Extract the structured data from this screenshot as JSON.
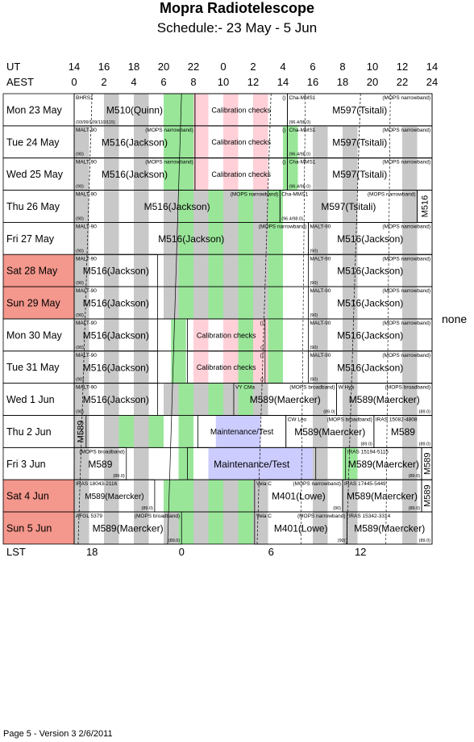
{
  "title": "Mopra Radiotelescope",
  "subtitle": "Schedule:- 23 May - 5  Jun",
  "axes": {
    "ut_label": "UT",
    "aest_label": "AEST",
    "lst_label": "LST",
    "ut_ticks": [
      "14",
      "16",
      "18",
      "20",
      "22",
      "0",
      "2",
      "4",
      "6",
      "8",
      "10",
      "12",
      "14"
    ],
    "aest_ticks": [
      "0",
      "2",
      "4",
      "6",
      "8",
      "10",
      "12",
      "14",
      "16",
      "18",
      "20",
      "22",
      "24"
    ],
    "lst_ticks": [
      {
        "label": "18",
        "aest": 1.2
      },
      {
        "label": "0",
        "aest": 7.2
      },
      {
        "label": "6",
        "aest": 13.2
      },
      {
        "label": "12",
        "aest": 19.2
      }
    ]
  },
  "colors": {
    "green": "#99e699",
    "grey": "#c8c8c8",
    "pink": "#ffd0d8",
    "blue": "#ccccff",
    "weekend": "#f4978c"
  },
  "side_note": "none",
  "footer": "Page 5 - Version 3  2/6/2011",
  "chart_data": {
    "type": "table",
    "x_axis": "AEST hour",
    "xlim": [
      0,
      24
    ],
    "days": [
      {
        "label": "Mon 23 May",
        "weekend": false,
        "green": [
          6,
          7
        ],
        "grey": [
          [
            2,
            3
          ],
          [
            4,
            5
          ]
        ],
        "pink": [
          [
            8,
            9
          ],
          [
            10,
            11
          ],
          [
            12,
            13
          ]
        ],
        "blocks": [
          {
            "start": 0,
            "end": 8.1,
            "main": "M510(Quinn)",
            "tl": "BHRS1",
            "bl": "(93/99/109/110/115)",
            "size": 12
          },
          {
            "start": 8.1,
            "end": 14.3,
            "main": "Calibration checks",
            "tr": "()",
            "size": 9
          },
          {
            "start": 14.3,
            "end": 24,
            "main": "M597(Tsitali)",
            "tl": "Cha-MMS1",
            "tr": "(MOPS narrowband)",
            "bl": "(96.4/98.0)",
            "size": 12
          }
        ]
      },
      {
        "label": "Tue  24 May",
        "weekend": false,
        "green": [
          6,
          7,
          14
        ],
        "grey": [
          [
            0,
            1
          ],
          [
            2,
            3
          ],
          [
            4,
            5
          ],
          [
            16,
            17
          ],
          [
            18,
            19
          ],
          [
            22,
            23
          ]
        ],
        "pink": [
          [
            8,
            9
          ],
          [
            10,
            11
          ],
          [
            12,
            13
          ]
        ],
        "blocks": [
          {
            "start": 0,
            "end": 8.1,
            "main": "M516(Jackson)",
            "tl": "MALT-90",
            "tr": "(MOPS narrowband)",
            "bl": "(90)",
            "size": 12
          },
          {
            "start": 8.1,
            "end": 14.3,
            "main": "Calibration checks",
            "tr": "()",
            "size": 9
          },
          {
            "start": 14.3,
            "end": 24,
            "main": "M597(Tsitali)",
            "tl": "Cha-MMS1",
            "tr": "(MOPS narrowband)",
            "bl": "(96.4/98.0)",
            "size": 12
          }
        ]
      },
      {
        "label": "Wed 25 May",
        "weekend": false,
        "green": [
          6,
          7,
          14
        ],
        "grey": [
          [
            0,
            1
          ],
          [
            2,
            3
          ],
          [
            4,
            5
          ],
          [
            16,
            17
          ],
          [
            18,
            19
          ],
          [
            22,
            23
          ]
        ],
        "pink": [
          [
            8,
            9
          ],
          [
            10,
            11
          ],
          [
            12,
            13
          ]
        ],
        "blocks": [
          {
            "start": 0,
            "end": 8.1,
            "main": "M516(Jackson)",
            "tl": "MALT-90",
            "tr": "(MOPS narrowband)",
            "bl": "(90)",
            "size": 12
          },
          {
            "start": 8.1,
            "end": 14.3,
            "main": "Calibration checks",
            "tr": "()",
            "size": 9
          },
          {
            "start": 14.3,
            "end": 24,
            "main": "M597(Tsitali)",
            "tl": "Cha-MMS1",
            "tr": "(MOPS narrowband)",
            "bl": "(96.4/98.0)",
            "size": 12
          }
        ]
      },
      {
        "label": "Thu  26 May",
        "weekend": false,
        "green": [
          7,
          9,
          11,
          13
        ],
        "grey": [
          [
            0,
            1
          ],
          [
            2,
            3
          ],
          [
            4,
            5
          ],
          [
            6,
            7
          ],
          [
            8,
            9
          ],
          [
            10,
            11
          ],
          [
            12,
            13
          ],
          [
            16,
            17
          ],
          [
            18,
            19
          ],
          [
            22,
            23
          ]
        ],
        "pink": [],
        "blocks": [
          {
            "start": 0,
            "end": 13.8,
            "main": "M516(Jackson)",
            "tl": "MALT-90",
            "tr": "(MOPS narrowband)",
            "bl": "(90)",
            "size": 12
          },
          {
            "start": 13.8,
            "end": 23,
            "main": "M597(Tsitali)",
            "tl": "Cha-MMS1",
            "tr": "(MOPS narrowband)",
            "bl": "(96.4/98.0)",
            "size": 12
          },
          {
            "start": 23,
            "end": 24,
            "main": "M516",
            "vertical": true,
            "size": 11
          }
        ]
      },
      {
        "label": "Fri   27 May",
        "weekend": false,
        "green": [
          7,
          9,
          11,
          13
        ],
        "grey": [
          [
            0,
            1
          ],
          [
            2,
            3
          ],
          [
            4,
            5
          ],
          [
            6,
            7
          ],
          [
            8,
            9
          ],
          [
            10,
            11
          ],
          [
            12,
            13
          ],
          [
            16,
            17
          ],
          [
            18,
            19
          ],
          [
            22,
            23
          ]
        ],
        "pink": [],
        "blocks": [
          {
            "start": 0,
            "end": 15.7,
            "main": "M516(Jackson)",
            "tl": "MALT-90",
            "tr": "(MOPS narrowband)",
            "bl": "(90)",
            "size": 12
          },
          {
            "start": 15.7,
            "end": 24,
            "main": "M516(Jackson)",
            "tl": "MALT-90",
            "tr": "(MOPS narrowband)",
            "bl": "(90)",
            "size": 12
          }
        ]
      },
      {
        "label": "Sat   28 May",
        "weekend": true,
        "green": [
          7,
          9,
          11,
          13
        ],
        "grey": [
          [
            0,
            1
          ],
          [
            2,
            3
          ],
          [
            4,
            5
          ],
          [
            6,
            7
          ],
          [
            8,
            9
          ],
          [
            10,
            11
          ],
          [
            12,
            13
          ],
          [
            16,
            17
          ],
          [
            18,
            19
          ],
          [
            22,
            23
          ]
        ],
        "pink": [],
        "blocks": [
          {
            "start": 0,
            "end": 5.6,
            "main": "M516(Jackson)",
            "tl": "MALT-90",
            "bl": "(90)",
            "size": 12
          },
          {
            "start": 15.7,
            "end": 24,
            "main": "M516(Jackson)",
            "tl": "MALT-90",
            "tr": "(MOPS narrowband)",
            "bl": "(90)",
            "size": 12
          }
        ]
      },
      {
        "label": "Sun  29 May",
        "weekend": true,
        "green": [
          7,
          9,
          11,
          13
        ],
        "grey": [
          [
            0,
            1
          ],
          [
            2,
            3
          ],
          [
            4,
            5
          ],
          [
            6,
            7
          ],
          [
            8,
            9
          ],
          [
            10,
            11
          ],
          [
            12,
            13
          ],
          [
            16,
            17
          ],
          [
            18,
            19
          ],
          [
            22,
            23
          ]
        ],
        "pink": [],
        "blocks": [
          {
            "start": 0,
            "end": 5.6,
            "main": "M516(Jackson)",
            "tl": "MALT-90",
            "bl": "(90)",
            "size": 12
          },
          {
            "start": 15.7,
            "end": 24,
            "main": "M516(Jackson)",
            "tl": "MALT-90",
            "tr": "(MOPS narrowband)",
            "bl": "(90)",
            "size": 12
          }
        ]
      },
      {
        "label": "Mon 30 May",
        "weekend": false,
        "green": [
          6.5,
          11,
          13
        ],
        "grey": [
          [
            0,
            1
          ],
          [
            2,
            3
          ],
          [
            4,
            5
          ],
          [
            16,
            17
          ],
          [
            18,
            19
          ],
          [
            22,
            23
          ]
        ],
        "pink": [
          [
            8,
            9
          ],
          [
            10,
            11
          ],
          [
            12,
            13
          ]
        ],
        "blocks": [
          {
            "start": 0,
            "end": 5.6,
            "main": "M516(Jackson)",
            "tl": "MALT-90",
            "bl": "(90)",
            "size": 12
          },
          {
            "start": 7.6,
            "end": 12.8,
            "main": "Calibration checks",
            "tr": "()",
            "br": "()",
            "size": 9
          },
          {
            "start": 15.7,
            "end": 24,
            "main": "M516(Jackson)",
            "tl": "MALT-90",
            "tr": "(MOPS narrowband)",
            "bl": "(90)",
            "size": 12
          }
        ]
      },
      {
        "label": "Tue  31 May",
        "weekend": false,
        "green": [
          6.5,
          11,
          13
        ],
        "grey": [
          [
            0,
            1
          ],
          [
            2,
            3
          ],
          [
            4,
            5
          ],
          [
            16,
            17
          ],
          [
            18,
            19
          ],
          [
            22,
            23
          ]
        ],
        "pink": [
          [
            8,
            9
          ],
          [
            10,
            11
          ],
          [
            12,
            13
          ]
        ],
        "blocks": [
          {
            "start": 0,
            "end": 5.6,
            "main": "M516(Jackson)",
            "tl": "MALT-90",
            "bl": "(90)",
            "size": 12
          },
          {
            "start": 7.6,
            "end": 12.8,
            "main": "Calibration checks",
            "tr": "()",
            "br": "()",
            "size": 9
          },
          {
            "start": 15.7,
            "end": 24,
            "main": "M516(Jackson)",
            "tl": "MALT-90",
            "tr": "(MOPS narrowband)",
            "bl": "(90)",
            "size": 12
          }
        ]
      },
      {
        "label": "Wed   1  Jun",
        "weekend": false,
        "green": [
          7,
          9,
          11
        ],
        "grey": [
          [
            0,
            1
          ],
          [
            2,
            3
          ],
          [
            4,
            5
          ],
          [
            6,
            7
          ],
          [
            8,
            9
          ],
          [
            10,
            11
          ],
          [
            12,
            13
          ],
          [
            16,
            17
          ],
          [
            18,
            19
          ],
          [
            22,
            23
          ]
        ],
        "pink": [],
        "blocks": [
          {
            "start": 0,
            "end": 5.6,
            "main": "M516(Jackson)",
            "tl": "MALT-90",
            "bl": "(90)",
            "size": 12
          },
          {
            "start": 10.7,
            "end": 17.6,
            "main": "M589(Maercker)",
            "tl": "VY CMa",
            "tr": "(MOPS broadband)",
            "bl": "",
            "br": "(89.0)",
            "size": 12
          },
          {
            "start": 17.6,
            "end": 24,
            "main": "M589(Maercker)",
            "tl": "W Hya",
            "tr": "(MOPS broadband)",
            "br": "(89.0)",
            "size": 12
          }
        ]
      },
      {
        "label": "Thu   2  Jun",
        "weekend": false,
        "green": [
          3,
          5,
          7
        ],
        "grey": [
          [
            0,
            1
          ],
          [
            2,
            3
          ],
          [
            4,
            5
          ],
          [
            16,
            17
          ],
          [
            18,
            19
          ],
          [
            22,
            23
          ]
        ],
        "pink": [],
        "blue": [
          [
            9.5,
            12.5
          ]
        ],
        "blocks": [
          {
            "start": 0,
            "end": 0.8,
            "main": "M589",
            "vertical": true,
            "size": 11
          },
          {
            "start": 8.3,
            "end": 14.2,
            "main": "Maintenance/Test",
            "size": 10
          },
          {
            "start": 14.2,
            "end": 20.1,
            "main": "M589(Maercker)",
            "tl": "CW Leo",
            "tr": "(MOPS broadband)",
            "br": "(89.0)",
            "size": 12
          },
          {
            "start": 20.1,
            "end": 24,
            "main": "M589",
            "tl": "IRAS 15082-4808",
            "br": "(89.0)",
            "size": 12
          }
        ]
      },
      {
        "label": "Fri    3  Jun",
        "weekend": false,
        "green": [
          7,
          18
        ],
        "grey": [
          [
            0,
            1
          ],
          [
            2,
            3
          ],
          [
            4,
            5
          ],
          [
            16,
            17
          ],
          [
            18,
            19
          ],
          [
            22,
            23
          ]
        ],
        "pink": [],
        "blue": [
          [
            9,
            16
          ]
        ],
        "blocks": [
          {
            "start": 0,
            "end": 3.5,
            "main": "M589",
            "tl": "",
            "tr": "(MOPS broadband)",
            "br": "(89.0)",
            "size": 12
          },
          {
            "start": 7.6,
            "end": 16.2,
            "main": "Maintenance/Test",
            "size": 12
          },
          {
            "start": 18.2,
            "end": 23.3,
            "main": "M589(Maercker)",
            "tl": "IRAS 15194-5115",
            "br": "(89.0)",
            "size": 12
          },
          {
            "start": 23.3,
            "end": 24,
            "main": "M589",
            "vertical": true,
            "size": 11
          }
        ]
      },
      {
        "label": "Sat    4  Jun",
        "weekend": true,
        "green": [
          6,
          7,
          9,
          11
        ],
        "grey": [
          [
            0,
            1
          ],
          [
            2,
            3
          ],
          [
            4,
            5
          ],
          [
            6,
            7
          ],
          [
            8,
            9
          ],
          [
            10,
            11
          ],
          [
            12,
            13
          ],
          [
            16,
            17
          ],
          [
            18,
            19
          ],
          [
            22,
            23
          ]
        ],
        "pink": [],
        "blocks": [
          {
            "start": 0,
            "end": 5.4,
            "main": "M589(Maercker)",
            "tl": "IRAS 18043-2116",
            "br": "(89.0)",
            "size": 10
          },
          {
            "start": 12.1,
            "end": 18.0,
            "main": "M401(Lowe)",
            "tl": "Vela C",
            "tr": "(MOPS narrowband)",
            "br": "(90)",
            "size": 12
          },
          {
            "start": 18.0,
            "end": 23.3,
            "main": "M589(Maercker)",
            "tl": "IRAS 17445-5449",
            "br": "(89.0)",
            "size": 12
          },
          {
            "start": 23.3,
            "end": 24,
            "main": "M589",
            "vertical": true,
            "size": 11
          }
        ]
      },
      {
        "label": "Sun    5  Jun",
        "weekend": true,
        "green": [
          7,
          9,
          11
        ],
        "grey": [
          [
            0,
            1
          ],
          [
            2,
            3
          ],
          [
            4,
            5
          ],
          [
            6,
            7
          ],
          [
            8,
            9
          ],
          [
            10,
            11
          ],
          [
            12,
            13
          ],
          [
            16,
            17
          ],
          [
            18,
            19
          ],
          [
            22,
            23
          ]
        ],
        "pink": [],
        "blocks": [
          {
            "start": 0,
            "end": 7.2,
            "main": "M589(Maercker)",
            "tl": "AFGL 5379",
            "tr": "(MOPS broadband)",
            "br": "(89.0)",
            "size": 12
          },
          {
            "start": 12.1,
            "end": 18.3,
            "main": "M401(Lowe)",
            "tl": "Vela C",
            "tr": "(MOPS narrowband)",
            "br": "(90)",
            "size": 12
          },
          {
            "start": 18.3,
            "end": 24,
            "main": "M589(Maercker)",
            "tl": "IRAS 15342-3314",
            "br": "(89.0)",
            "size": 12
          }
        ]
      }
    ]
  }
}
